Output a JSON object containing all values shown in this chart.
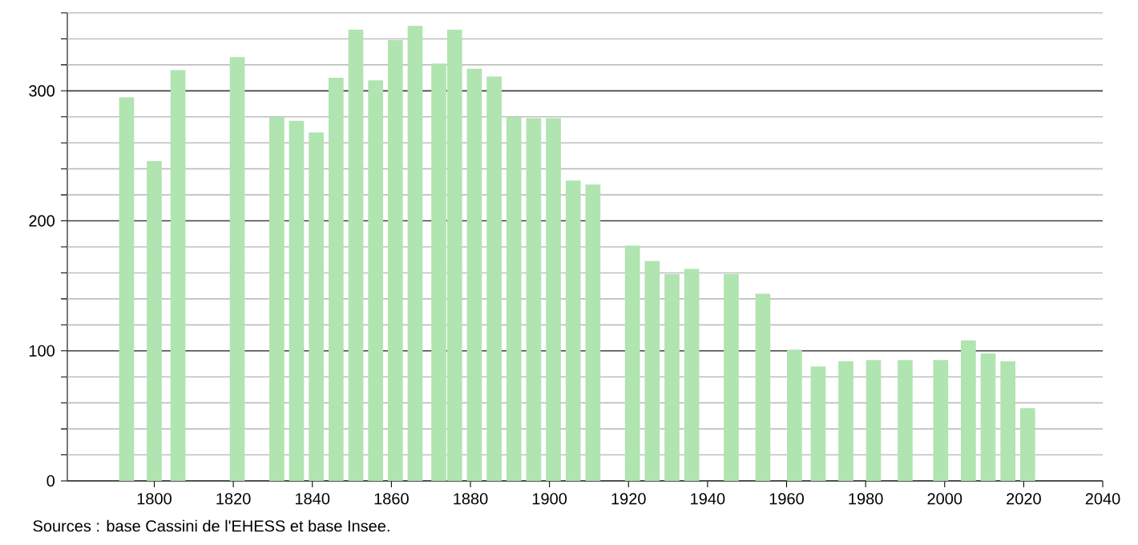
{
  "chart_data": {
    "type": "bar",
    "x": [
      1793,
      1800,
      1806,
      1821,
      1831,
      1836,
      1841,
      1846,
      1851,
      1856,
      1861,
      1866,
      1872,
      1876,
      1881,
      1886,
      1891,
      1896,
      1901,
      1906,
      1911,
      1921,
      1926,
      1931,
      1936,
      1946,
      1954,
      1962,
      1968,
      1975,
      1982,
      1990,
      1999,
      2006,
      2011,
      2016,
      2021
    ],
    "values": [
      295,
      246,
      316,
      326,
      280,
      277,
      268,
      310,
      347,
      308,
      339,
      350,
      321,
      347,
      317,
      311,
      280,
      279,
      279,
      231,
      228,
      181,
      169,
      159,
      163,
      159,
      144,
      101,
      88,
      92,
      93,
      93,
      93,
      108,
      98,
      92,
      56
    ],
    "color": "#b0e4b0",
    "xlim": [
      1778,
      2040
    ],
    "xticks": [
      1800,
      1820,
      1840,
      1860,
      1880,
      1900,
      1920,
      1940,
      1960,
      1980,
      2000,
      2020,
      2040
    ],
    "ylim": [
      0,
      360
    ],
    "yticks": [
      0,
      {
        "value": 20,
        "label": null
      },
      {
        "value": 40,
        "label": null
      },
      {
        "value": 60,
        "label": null
      },
      {
        "value": 80,
        "label": null
      },
      100,
      {
        "value": 120,
        "label": null
      },
      {
        "value": 140,
        "label": null
      },
      {
        "value": 160,
        "label": null
      },
      {
        "value": 180,
        "label": null
      },
      200,
      {
        "value": 220,
        "label": null
      },
      {
        "value": 240,
        "label": null
      },
      {
        "value": 260,
        "label": null
      },
      {
        "value": 280,
        "label": null
      },
      300,
      {
        "value": 320,
        "label": null
      },
      {
        "value": 340,
        "label": null
      },
      {
        "value": 360,
        "label": null
      }
    ],
    "grid": "y",
    "annotations": [
      "Sources : base Cassini de l'EHESS et base Insee."
    ]
  }
}
